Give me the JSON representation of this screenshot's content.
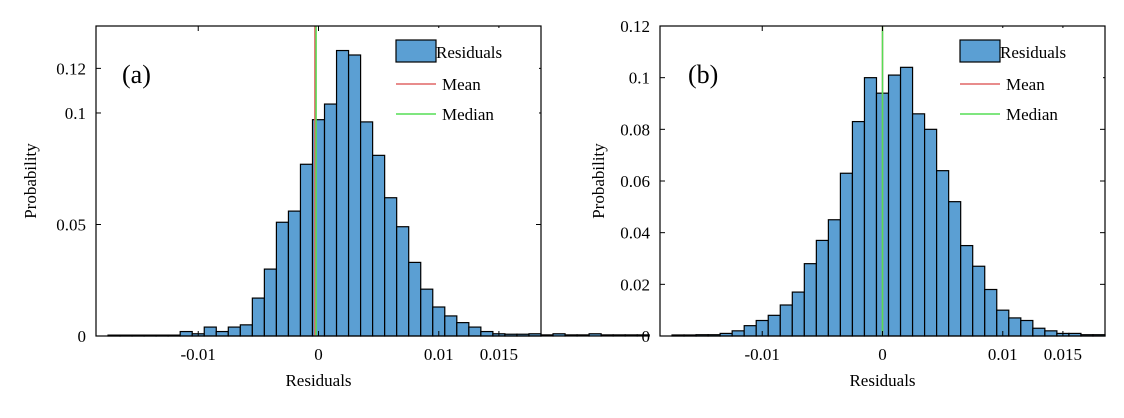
{
  "chart_data": [
    {
      "type": "bar",
      "panel_label": "(a)",
      "xlabel": "Residuals",
      "ylabel": "Probability",
      "xlim": [
        -0.0185,
        0.0185
      ],
      "ylim": [
        0,
        0.139
      ],
      "xticks": [
        -0.01,
        0,
        0.01,
        0.015
      ],
      "xtick_labels": [
        "-0.01",
        "0",
        "0.01",
        "0.015"
      ],
      "yticks": [
        0,
        0.05,
        0.1,
        0.12
      ],
      "ytick_labels": [
        "0",
        "0.05",
        "0.1",
        "0.12"
      ],
      "bin_width": 0.001,
      "bin_start": -0.0175,
      "values": [
        0.0004,
        0.0004,
        0.0004,
        0.0004,
        0.0004,
        0.0004,
        0.002,
        0.001,
        0.004,
        0.002,
        0.004,
        0.005,
        0.017,
        0.03,
        0.051,
        0.056,
        0.077,
        0.097,
        0.104,
        0.128,
        0.126,
        0.096,
        0.081,
        0.062,
        0.049,
        0.033,
        0.021,
        0.013,
        0.009,
        0.006,
        0.004,
        0.002,
        0.001,
        0.0008,
        0.0008,
        0.001,
        0.0005,
        0.001,
        0.0005,
        0.0005,
        0.001,
        0.0005,
        0.0005,
        0.0005,
        0.0005
      ],
      "mean": -0.0003,
      "median": -0.0002,
      "legend": [
        "Residuals",
        "Mean",
        "Median"
      ],
      "legend_position": "top-right",
      "colors": {
        "bar": "#5b9fd3",
        "edge": "#000000",
        "mean": "#e06666",
        "median": "#55dd55"
      }
    },
    {
      "type": "bar",
      "panel_label": "(b)",
      "xlabel": "Residuals",
      "ylabel": "Probability",
      "xlim": [
        -0.0185,
        0.0185
      ],
      "ylim": [
        0,
        0.12
      ],
      "xticks": [
        -0.01,
        0,
        0.01,
        0.015
      ],
      "xtick_labels": [
        "-0.01",
        "0",
        "0.01",
        "0.015"
      ],
      "yticks": [
        0,
        0.02,
        0.04,
        0.06,
        0.08,
        0.1,
        0.12
      ],
      "ytick_labels": [
        "0",
        "0.02",
        "0.04",
        "0.06",
        "0.08",
        "0.1",
        "0.12"
      ],
      "bin_width": 0.001,
      "bin_start": -0.0175,
      "values": [
        0.0004,
        0.0004,
        0.0005,
        0.0005,
        0.001,
        0.002,
        0.004,
        0.006,
        0.008,
        0.012,
        0.017,
        0.028,
        0.037,
        0.045,
        0.063,
        0.083,
        0.1,
        0.094,
        0.101,
        0.104,
        0.086,
        0.08,
        0.064,
        0.052,
        0.035,
        0.027,
        0.018,
        0.01,
        0.007,
        0.006,
        0.003,
        0.002,
        0.001,
        0.001,
        0.0005,
        0.0005
      ],
      "mean": 0.0,
      "median": 0.0,
      "legend": [
        "Residuals",
        "Mean",
        "Median"
      ],
      "legend_position": "top-right",
      "colors": {
        "bar": "#5b9fd3",
        "edge": "#000000",
        "mean": "#e06666",
        "median": "#55dd55"
      }
    }
  ]
}
